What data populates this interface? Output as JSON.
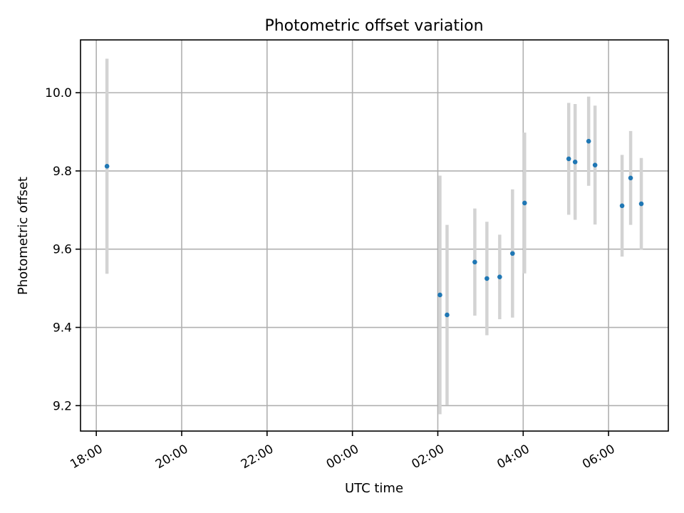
{
  "chart_data": {
    "type": "scatter",
    "title": "Photometric offset variation",
    "xlabel": "UTC time",
    "ylabel": "Photometric offset",
    "x_start_label": "18:00",
    "xlim_hours": [
      17.63,
      31.4
    ],
    "ylim": [
      9.135,
      10.135
    ],
    "grid": true,
    "x_ticks": [
      {
        "hours": 18,
        "label": "18:00"
      },
      {
        "hours": 20,
        "label": "20:00"
      },
      {
        "hours": 22,
        "label": "22:00"
      },
      {
        "hours": 24,
        "label": "00:00"
      },
      {
        "hours": 26,
        "label": "02:00"
      },
      {
        "hours": 28,
        "label": "04:00"
      },
      {
        "hours": 30,
        "label": "06:00"
      }
    ],
    "y_ticks": [
      {
        "value": 9.2,
        "label": "9.2"
      },
      {
        "value": 9.4,
        "label": "9.4"
      },
      {
        "value": 9.6,
        "label": "9.6"
      },
      {
        "value": 9.8,
        "label": "9.8"
      },
      {
        "value": 10.0,
        "label": "10.0"
      }
    ],
    "marker_color": "#1f77b4",
    "errorbar_color": "#d3d3d3",
    "points": [
      {
        "time": "18:15",
        "y": 9.812,
        "err": 0.275
      },
      {
        "time": "02:03",
        "y": 9.483,
        "err": 0.305
      },
      {
        "time": "02:13",
        "y": 9.432,
        "err": 0.23
      },
      {
        "time": "02:52",
        "y": 9.567,
        "err": 0.137
      },
      {
        "time": "03:09",
        "y": 9.525,
        "err": 0.145
      },
      {
        "time": "03:27",
        "y": 9.529,
        "err": 0.108
      },
      {
        "time": "03:45",
        "y": 9.589,
        "err": 0.164
      },
      {
        "time": "04:02",
        "y": 9.718,
        "err": 0.18
      },
      {
        "time": "05:04",
        "y": 9.831,
        "err": 0.143
      },
      {
        "time": "05:13",
        "y": 9.823,
        "err": 0.148
      },
      {
        "time": "05:32",
        "y": 9.876,
        "err": 0.114
      },
      {
        "time": "05:41",
        "y": 9.815,
        "err": 0.152
      },
      {
        "time": "06:19",
        "y": 9.711,
        "err": 0.13
      },
      {
        "time": "06:31",
        "y": 9.782,
        "err": 0.12
      },
      {
        "time": "06:46",
        "y": 9.716,
        "err": 0.117
      }
    ]
  }
}
